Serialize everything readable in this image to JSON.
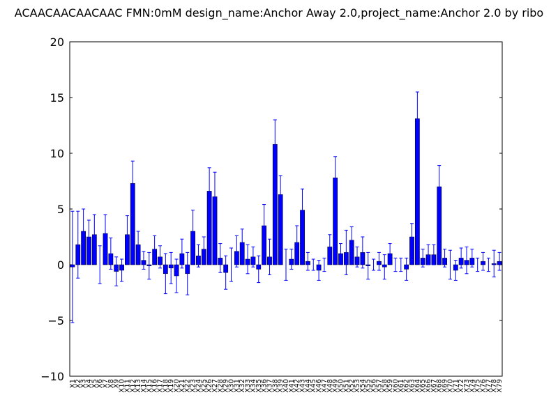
{
  "chart_data": {
    "type": "bar",
    "title": "ACAACAACAACAAC  FMN:0mM  design_name:Anchor Away 2.0,project_name:Anchor 2.0 by ribo",
    "categories": [
      "X1",
      "X2",
      "X3",
      "X4",
      "X5",
      "X6",
      "X7",
      "X8",
      "X9",
      "X10",
      "X11",
      "X12",
      "X13",
      "X14",
      "X15",
      "X16",
      "X17",
      "X18",
      "X19",
      "X20",
      "X21",
      "X22",
      "X23",
      "X24",
      "X25",
      "X26",
      "X27",
      "X28",
      "X29",
      "X30",
      "X31",
      "X32",
      "X33",
      "X34",
      "X35",
      "X36",
      "X37",
      "X38",
      "X39",
      "X40",
      "X41",
      "X42",
      "X43",
      "X44",
      "X45",
      "X46",
      "X47",
      "X48",
      "X49",
      "X50",
      "X51",
      "X52",
      "X53",
      "X54",
      "X55",
      "X56",
      "X57",
      "X58",
      "X59",
      "X60",
      "X61",
      "X62",
      "X63",
      "X64",
      "X65",
      "X66",
      "X67",
      "X68",
      "X69",
      "X70",
      "X71",
      "X72",
      "X73",
      "X74",
      "X75",
      "X76",
      "X77",
      "X78",
      "X79"
    ],
    "values": [
      -0.2,
      1.8,
      3.0,
      2.5,
      2.7,
      0.0,
      2.8,
      1.0,
      -0.6,
      -0.5,
      2.7,
      7.3,
      1.8,
      0.4,
      -0.1,
      1.4,
      0.7,
      -0.8,
      -0.3,
      -1.0,
      1.0,
      -0.8,
      3.0,
      0.8,
      1.4,
      6.6,
      6.1,
      0.6,
      -0.7,
      0.0,
      1.2,
      2.0,
      0.5,
      0.7,
      -0.4,
      3.5,
      0.7,
      10.8,
      6.3,
      0.0,
      0.5,
      2.0,
      4.9,
      0.3,
      0.0,
      -0.5,
      0.0,
      1.6,
      7.8,
      1.0,
      1.1,
      2.2,
      0.7,
      1.1,
      -0.1,
      0.0,
      0.3,
      -0.2,
      1.0,
      0.0,
      0.0,
      -0.4,
      2.5,
      13.1,
      0.6,
      0.9,
      0.9,
      7.0,
      0.6,
      0.0,
      -0.5,
      0.6,
      0.4,
      0.6,
      0.0,
      0.3,
      0.0,
      0.1,
      0.3
    ],
    "errors": [
      5.0,
      3.0,
      2.0,
      1.5,
      1.8,
      1.7,
      1.7,
      1.4,
      1.3,
      1.0,
      1.7,
      2.0,
      1.2,
      0.8,
      1.2,
      1.2,
      1.0,
      1.8,
      1.4,
      1.5,
      1.3,
      1.9,
      1.9,
      1.0,
      1.1,
      2.1,
      2.2,
      1.3,
      1.5,
      1.5,
      1.4,
      1.2,
      1.3,
      0.9,
      1.2,
      1.9,
      1.6,
      2.2,
      1.7,
      1.4,
      0.9,
      1.5,
      1.9,
      0.8,
      0.5,
      0.9,
      0.6,
      1.1,
      1.9,
      0.9,
      2.0,
      1.2,
      0.9,
      1.4,
      1.2,
      0.5,
      0.8,
      1.1,
      0.9,
      0.6,
      0.6,
      1.0,
      1.2,
      2.4,
      0.8,
      0.9,
      0.9,
      1.9,
      0.8,
      1.3,
      0.9,
      0.9,
      1.2,
      0.8,
      0.6,
      0.8,
      0.6,
      1.2,
      0.8
    ],
    "color": "#0000ff",
    "ylim": [
      -10,
      20
    ],
    "yticks": [
      {
        "value": -10,
        "label": "−10"
      },
      {
        "value": -5,
        "label": "−5"
      },
      0,
      5,
      10,
      15,
      20
    ]
  }
}
